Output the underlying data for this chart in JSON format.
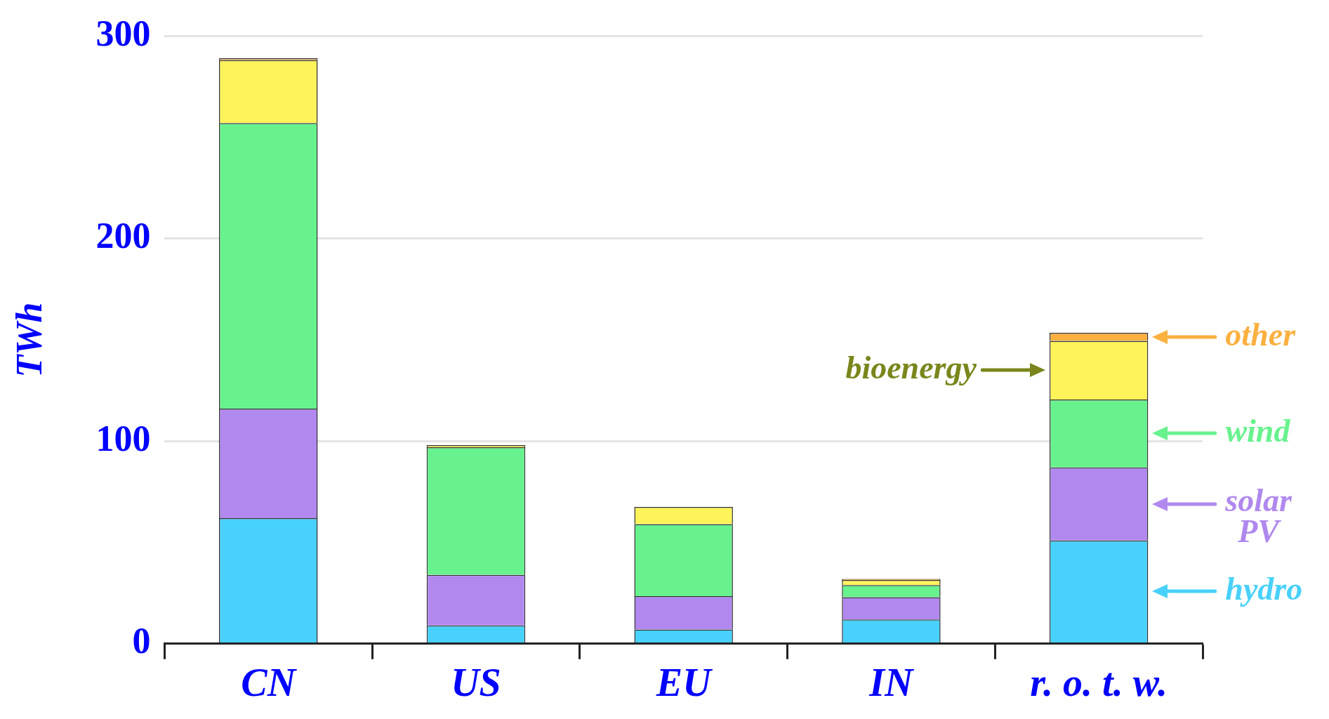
{
  "chart_data": {
    "type": "bar",
    "stacked": true,
    "ylabel": "TWh",
    "categories": [
      "CN",
      "US",
      "EU",
      "IN",
      "r. o. t. w."
    ],
    "series": [
      {
        "name": "hydro",
        "color": "#48d1fc",
        "values": [
          62,
          9,
          7,
          12,
          51
        ]
      },
      {
        "name": "solar PV",
        "color": "#b088ee",
        "values": [
          54,
          25,
          16.5,
          11,
          36
        ]
      },
      {
        "name": "wind",
        "color": "#68f28e",
        "values": [
          141,
          63,
          35.5,
          6,
          33.5
        ]
      },
      {
        "name": "bioenergy",
        "color": "#fff35a",
        "values": [
          31,
          1,
          8.5,
          2.5,
          29
        ]
      },
      {
        "name": "other",
        "color": "#fbb040",
        "values": [
          1,
          null,
          null,
          0.5,
          4
        ]
      }
    ],
    "ylim": [
      0,
      300
    ],
    "yticks": [
      0,
      100,
      200,
      300
    ],
    "grid": "y",
    "legend": "right"
  }
}
